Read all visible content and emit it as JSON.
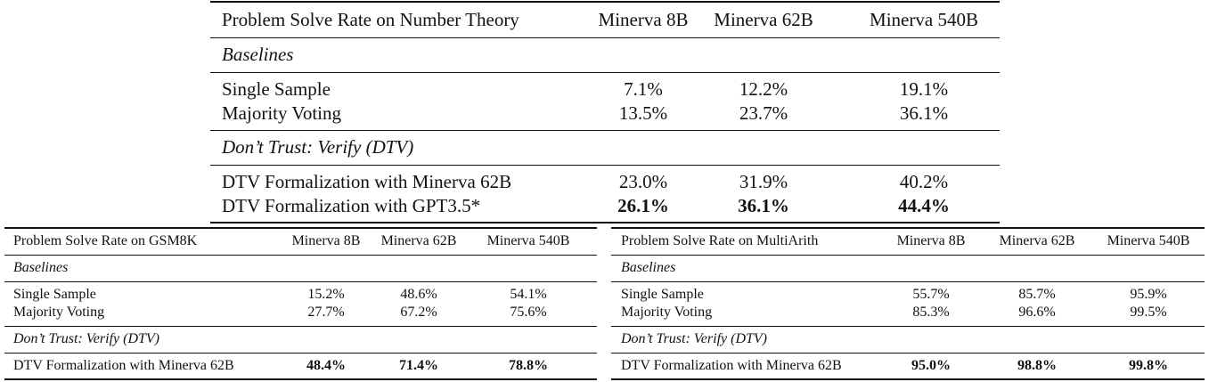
{
  "tables": [
    {
      "header": [
        "Problem Solve Rate on Number Theory",
        "Minerva 8B",
        "Minerva 62B",
        "Minerva 540B"
      ],
      "sections": [
        {
          "title": "Baselines",
          "rows": [
            {
              "label": "Single Sample",
              "values": [
                "7.1%",
                "12.2%",
                "19.1%"
              ]
            },
            {
              "label": "Majority Voting",
              "values": [
                "13.5%",
                "23.7%",
                "36.1%"
              ]
            }
          ]
        },
        {
          "title": "Don’t Trust: Verify (DTV)",
          "rows": [
            {
              "label": "DTV Formalization with Minerva 62B",
              "values": [
                "23.0%",
                "31.9%",
                "40.2%"
              ]
            },
            {
              "label": "DTV Formalization with GPT3.5*",
              "values": [
                "26.1%",
                "36.1%",
                "44.4%"
              ],
              "bold": true
            }
          ]
        }
      ]
    },
    {
      "header": [
        "Problem Solve Rate on GSM8K",
        "Minerva 8B",
        "Minerva 62B",
        "Minerva 540B"
      ],
      "sections": [
        {
          "title": "Baselines",
          "rows": [
            {
              "label": "Single Sample",
              "values": [
                "15.2%",
                "48.6%",
                "54.1%"
              ]
            },
            {
              "label": "Majority Voting",
              "values": [
                "27.7%",
                "67.2%",
                "75.6%"
              ]
            }
          ]
        },
        {
          "title": "Don’t Trust: Verify (DTV)",
          "rows": [
            {
              "label": "DTV Formalization with Minerva 62B",
              "values": [
                "48.4%",
                "71.4%",
                "78.8%"
              ],
              "bold": true
            }
          ]
        }
      ]
    },
    {
      "header": [
        "Problem Solve Rate on MultiArith",
        "Minerva 8B",
        "Minerva 62B",
        "Minerva 540B"
      ],
      "sections": [
        {
          "title": "Baselines",
          "rows": [
            {
              "label": "Single Sample",
              "values": [
                "55.7%",
                "85.7%",
                "95.9%"
              ]
            },
            {
              "label": "Majority Voting",
              "values": [
                "85.3%",
                "96.6%",
                "99.5%"
              ]
            }
          ]
        },
        {
          "title": "Don’t Trust: Verify (DTV)",
          "rows": [
            {
              "label": "DTV Formalization with Minerva 62B",
              "values": [
                "95.0%",
                "98.8%",
                "99.8%"
              ],
              "bold": true
            }
          ]
        }
      ]
    }
  ]
}
